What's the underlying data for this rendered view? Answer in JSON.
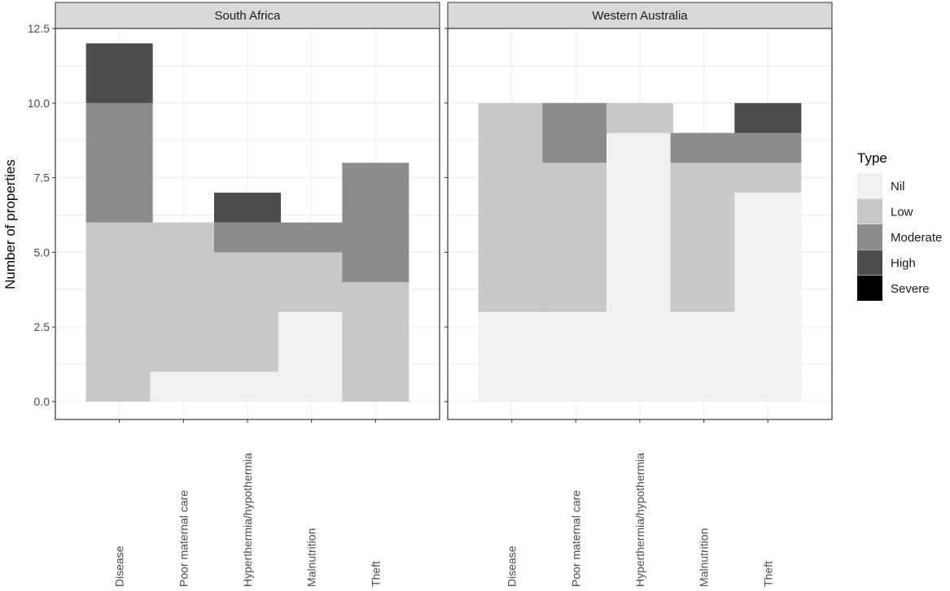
{
  "chart_data": {
    "type": "bar",
    "stacked": true,
    "ylabel": "Number of properties",
    "xlabel": "",
    "ylim": [
      -0.6,
      12.5
    ],
    "yticks": [
      "0.0",
      "2.5",
      "5.0",
      "7.5",
      "10.0",
      "12.5"
    ],
    "categories": [
      "Disease",
      "Poor maternal care",
      "Hyperthermia/hypothermia",
      "Malnutrition",
      "Theft"
    ],
    "legend": {
      "title": "Type",
      "entries": [
        "Nil",
        "Low",
        "Moderate",
        "High",
        "Severe"
      ],
      "placement": "right"
    },
    "colors": {
      "Nil": "#f0f0f0",
      "Low": "#c8c8c8",
      "Moderate": "#8c8c8c",
      "High": "#4d4d4d",
      "Severe": "#000000"
    },
    "panels": [
      {
        "name": "South Africa",
        "series": [
          {
            "name": "Nil",
            "values": [
              0,
              1,
              1,
              3,
              0
            ]
          },
          {
            "name": "Low",
            "values": [
              6,
              5,
              4,
              2,
              4
            ]
          },
          {
            "name": "Moderate",
            "values": [
              4,
              0,
              1,
              1,
              4
            ]
          },
          {
            "name": "High",
            "values": [
              2,
              0,
              1,
              0,
              0
            ]
          },
          {
            "name": "Severe",
            "values": [
              0,
              0,
              0,
              0,
              0
            ]
          }
        ]
      },
      {
        "name": "Western Australia",
        "series": [
          {
            "name": "Nil",
            "values": [
              3,
              3,
              9,
              3,
              7
            ]
          },
          {
            "name": "Low",
            "values": [
              7,
              5,
              1,
              5,
              1
            ]
          },
          {
            "name": "Moderate",
            "values": [
              0,
              2,
              0,
              1,
              1
            ]
          },
          {
            "name": "High",
            "values": [
              0,
              0,
              0,
              0,
              1
            ]
          },
          {
            "name": "Severe",
            "values": [
              0,
              0,
              0,
              0,
              0
            ]
          }
        ]
      }
    ]
  }
}
